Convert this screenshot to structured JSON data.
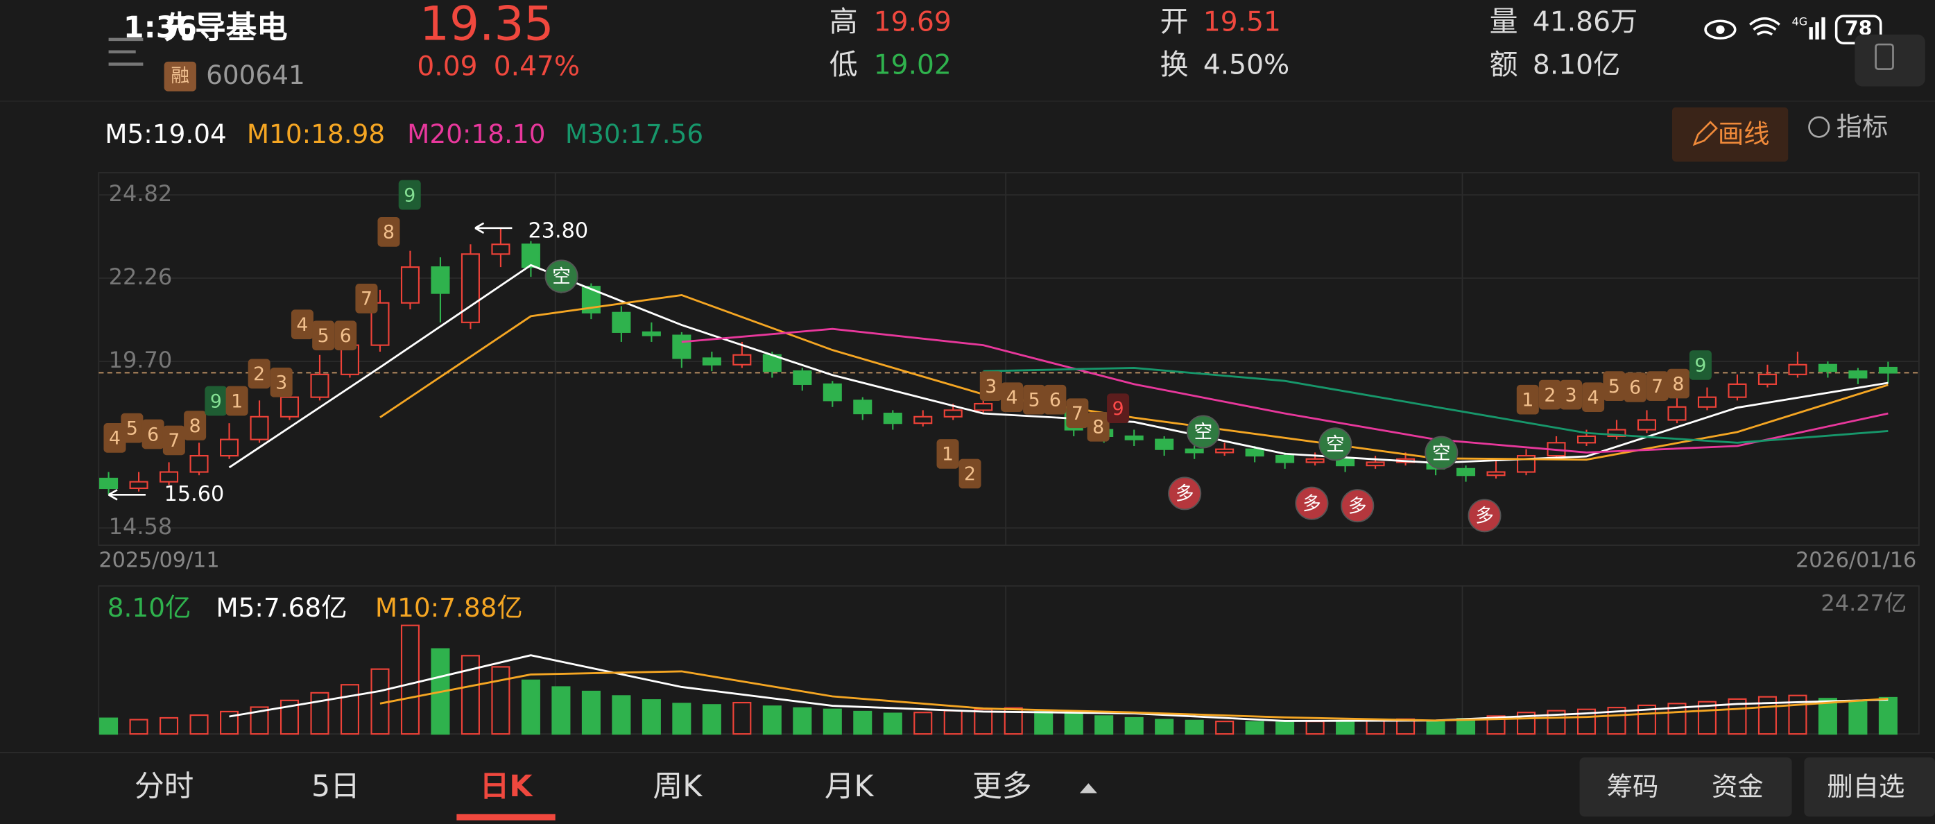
{
  "status_bar": {
    "time": "1:36",
    "network": "4G",
    "battery": "78"
  },
  "header": {
    "name": "先导基电",
    "tag": "融",
    "code": "600641",
    "price": "19.35",
    "change": "0.09",
    "change_pct": "0.47%",
    "high_label": "高",
    "high": "19.69",
    "low_label": "低",
    "low": "19.02",
    "open_label": "开",
    "open": "19.51",
    "turnover_label": "换",
    "turnover": "4.50%",
    "volume_label": "量",
    "volume": "41.86万",
    "amount_label": "额",
    "amount": "8.10亿"
  },
  "toolbar": {
    "draw": "画线",
    "indicator": "指标"
  },
  "kline": {
    "type": "candlestick",
    "ylim": [
      14.58,
      24.82
    ],
    "yticks": [
      24.82,
      22.26,
      {
        "value": 19.7,
        "label": "19.70"
      },
      14.58
    ],
    "x_labels": [
      "2025/09/11",
      "2026/01/16"
    ],
    "last_price": 19.35,
    "high_note": {
      "value": 23.8,
      "label": "23.80"
    },
    "low_note": {
      "value": 15.6,
      "label": "15.60"
    },
    "candles": [
      [
        16.1,
        15.8,
        16.3,
        15.6
      ],
      [
        15.8,
        16.0,
        16.3,
        15.7
      ],
      [
        16.0,
        16.3,
        16.6,
        15.9
      ],
      [
        16.3,
        16.8,
        17.2,
        16.2
      ],
      [
        16.8,
        17.3,
        17.8,
        16.7
      ],
      [
        17.3,
        18.0,
        18.5,
        17.2
      ],
      [
        18.0,
        18.6,
        19.2,
        17.9
      ],
      [
        18.6,
        19.3,
        19.9,
        18.5
      ],
      [
        19.3,
        20.2,
        20.8,
        19.2
      ],
      [
        20.2,
        21.5,
        21.9,
        20.0
      ],
      [
        21.5,
        22.6,
        23.1,
        21.3
      ],
      [
        22.6,
        21.8,
        22.9,
        20.9
      ],
      [
        20.9,
        23.0,
        23.3,
        20.7
      ],
      [
        23.0,
        23.3,
        23.8,
        22.6
      ],
      [
        23.3,
        22.6,
        23.4,
        22.3
      ],
      [
        22.6,
        22.0,
        22.8,
        21.8
      ],
      [
        22.0,
        21.2,
        22.1,
        21.0
      ],
      [
        21.2,
        20.6,
        21.4,
        20.3
      ],
      [
        20.6,
        20.5,
        20.9,
        20.3
      ],
      [
        20.5,
        19.8,
        20.6,
        19.5
      ],
      [
        19.8,
        19.6,
        20.0,
        19.4
      ],
      [
        19.6,
        19.9,
        20.3,
        19.5
      ],
      [
        19.9,
        19.4,
        20.0,
        19.2
      ],
      [
        19.4,
        19.0,
        19.5,
        18.8
      ],
      [
        19.0,
        18.5,
        19.1,
        18.3
      ],
      [
        18.5,
        18.1,
        18.6,
        17.9
      ],
      [
        18.1,
        17.8,
        18.2,
        17.6
      ],
      [
        17.8,
        18.0,
        18.2,
        17.7
      ],
      [
        18.0,
        18.2,
        18.4,
        17.9
      ],
      [
        18.2,
        18.4,
        18.6,
        18.1
      ],
      [
        18.4,
        18.6,
        18.9,
        18.3
      ],
      [
        18.6,
        18.3,
        18.7,
        18.1
      ],
      [
        18.3,
        17.6,
        18.4,
        17.4
      ],
      [
        17.6,
        17.4,
        17.8,
        17.2
      ],
      [
        17.4,
        17.3,
        17.6,
        17.1
      ],
      [
        17.3,
        17.0,
        17.4,
        16.8
      ],
      [
        17.0,
        16.9,
        17.2,
        16.7
      ],
      [
        16.9,
        17.0,
        17.2,
        16.8
      ],
      [
        17.0,
        16.8,
        17.1,
        16.6
      ],
      [
        16.8,
        16.6,
        16.9,
        16.4
      ],
      [
        16.6,
        16.7,
        16.9,
        16.5
      ],
      [
        16.7,
        16.5,
        16.8,
        16.3
      ],
      [
        16.5,
        16.6,
        16.8,
        16.4
      ],
      [
        16.6,
        16.7,
        16.9,
        16.5
      ],
      [
        16.7,
        16.4,
        16.8,
        16.2
      ],
      [
        16.4,
        16.2,
        16.5,
        16.0
      ],
      [
        16.2,
        16.3,
        16.7,
        16.1
      ],
      [
        16.3,
        16.8,
        17.0,
        16.2
      ],
      [
        16.8,
        17.2,
        17.4,
        16.7
      ],
      [
        17.2,
        17.4,
        17.6,
        17.1
      ],
      [
        17.4,
        17.6,
        17.9,
        17.3
      ],
      [
        17.6,
        17.9,
        18.2,
        17.5
      ],
      [
        17.9,
        18.3,
        18.6,
        17.8
      ],
      [
        18.3,
        18.6,
        18.9,
        18.2
      ],
      [
        18.6,
        19.0,
        19.3,
        18.5
      ],
      [
        19.0,
        19.3,
        19.6,
        18.9
      ],
      [
        19.3,
        19.6,
        20.0,
        19.2
      ],
      [
        19.6,
        19.4,
        19.7,
        19.2
      ],
      [
        19.4,
        19.2,
        19.5,
        19.0
      ],
      [
        19.51,
        19.35,
        19.69,
        19.02
      ]
    ],
    "ma_x": [
      4,
      9,
      14,
      19,
      24,
      29,
      34,
      39,
      44,
      49,
      54,
      59
    ],
    "ma": [
      {
        "name": "M5:19.04",
        "color": "#ffffff",
        "values": [
          16.44,
          19.52,
          22.66,
          20.82,
          19.28,
          18.1,
          17.84,
          16.86,
          16.58,
          16.78,
          18.28,
          19.04
        ]
      },
      {
        "name": "M10:18.98",
        "color": "#f5a623",
        "values": [
          null,
          17.98,
          21.09,
          21.74,
          20.05,
          18.69,
          17.97,
          17.35,
          16.72,
          16.68,
          17.53,
          18.98
        ]
      },
      {
        "name": "M20:18.10",
        "color": "#e8389c",
        "values": [
          null,
          null,
          null,
          20.3,
          20.7,
          20.2,
          19.0,
          18.1,
          17.3,
          16.9,
          17.1,
          18.1
        ]
      },
      {
        "name": "M30:17.56",
        "color": "#17976b",
        "values": [
          null,
          null,
          null,
          null,
          null,
          19.4,
          19.5,
          19.1,
          18.3,
          17.5,
          17.2,
          17.56
        ]
      }
    ],
    "volume_label": "8.10亿",
    "vlim": [
      0,
      24.27
    ],
    "vticks": [
      {
        "value": 24.27,
        "label": "24.27亿"
      }
    ],
    "volume": [
      3.5,
      3.2,
      3.6,
      4.2,
      5.0,
      6.0,
      7.5,
      9.2,
      11.0,
      14.5,
      24.27,
      19.0,
      17.5,
      15.0,
      12.0,
      10.5,
      9.5,
      8.5,
      7.6,
      6.8,
      6.5,
      7.0,
      6.2,
      5.8,
      5.5,
      5.0,
      4.6,
      4.8,
      5.2,
      5.5,
      5.8,
      5.0,
      4.5,
      4.0,
      3.6,
      3.2,
      3.0,
      2.8,
      2.7,
      2.6,
      2.8,
      2.9,
      3.1,
      3.3,
      3.0,
      3.4,
      4.0,
      4.8,
      5.2,
      5.5,
      5.9,
      6.4,
      6.8,
      7.2,
      7.8,
      8.3,
      8.6,
      7.9,
      7.4,
      8.1
    ],
    "vol_ma": [
      {
        "name": "M5:7.68亿",
        "color": "#ffffff",
        "values": [
          3.9,
          9.6,
          17.6,
          10.5,
          6.3,
          5.0,
          4.6,
          2.9,
          3.0,
          4.6,
          6.7,
          7.68
        ]
      },
      {
        "name": "M10:7.88亿",
        "color": "#f5a623",
        "values": [
          null,
          6.8,
          13.3,
          14.0,
          8.4,
          5.7,
          4.8,
          3.7,
          3.0,
          3.8,
          5.6,
          7.88
        ]
      }
    ],
    "markers": [
      {
        "label": "4",
        "color": "#7b4a25"
      },
      {
        "label": "5",
        "color": "#7b4a25"
      },
      {
        "label": "6",
        "color": "#7b4a25"
      },
      {
        "label": "7",
        "color": "#7b4a25"
      },
      {
        "label": "8",
        "color": "#7b4a25"
      },
      {
        "label": "9",
        "color": "#1f5d33"
      },
      {
        "label": "1",
        "color": "#7b4a25"
      },
      {
        "label": "2",
        "color": "#7b4a25"
      },
      {
        "label": "3",
        "color": "#7b4a25"
      },
      {
        "label": "4",
        "color": "#7b4a25"
      },
      {
        "label": "5",
        "color": "#7b4a25"
      },
      {
        "label": "6",
        "color": "#7b4a25"
      },
      {
        "label": "7",
        "color": "#7b4a25"
      },
      {
        "label": "8",
        "color": "#7b4a25"
      },
      {
        "label": "9",
        "color": "#1f5d33"
      },
      {
        "label": "空",
        "color": "#2f7a40"
      },
      {
        "label": "3",
        "color": "#7b4a25"
      },
      {
        "label": "4",
        "color": "#7b4a25"
      },
      {
        "label": "5",
        "color": "#7b4a25"
      },
      {
        "label": "6",
        "color": "#7b4a25"
      },
      {
        "label": "7",
        "color": "#7b4a25"
      },
      {
        "label": "8",
        "color": "#7b4a25"
      },
      {
        "label": "9",
        "color": "#5c1d1d"
      },
      {
        "label": "1",
        "color": "#7b4a25"
      },
      {
        "label": "2",
        "color": "#7b4a25"
      },
      {
        "label": "空",
        "color": "#2f7a40"
      },
      {
        "label": "多",
        "color": "#b5373d"
      },
      {
        "label": "空",
        "color": "#2f7a40"
      },
      {
        "label": "多",
        "color": "#b5373d"
      },
      {
        "label": "多",
        "color": "#b5373d"
      },
      {
        "label": "空",
        "color": "#2f7a40"
      },
      {
        "label": "多",
        "color": "#b5373d"
      },
      {
        "label": "1",
        "color": "#7b4a25"
      },
      {
        "label": "2",
        "color": "#7b4a25"
      },
      {
        "label": "3",
        "color": "#7b4a25"
      },
      {
        "label": "4",
        "color": "#7b4a25"
      },
      {
        "label": "5",
        "color": "#7b4a25"
      },
      {
        "label": "6",
        "color": "#7b4a25"
      },
      {
        "label": "7",
        "color": "#7b4a25"
      },
      {
        "label": "8",
        "color": "#7b4a25"
      },
      {
        "label": "9",
        "color": "#1f5d33"
      }
    ]
  },
  "tabs": [
    "分时",
    "5日",
    "日K",
    "周K",
    "月K",
    "更多"
  ],
  "bottom_buttons": [
    "筹码",
    "资金",
    "删自选"
  ]
}
